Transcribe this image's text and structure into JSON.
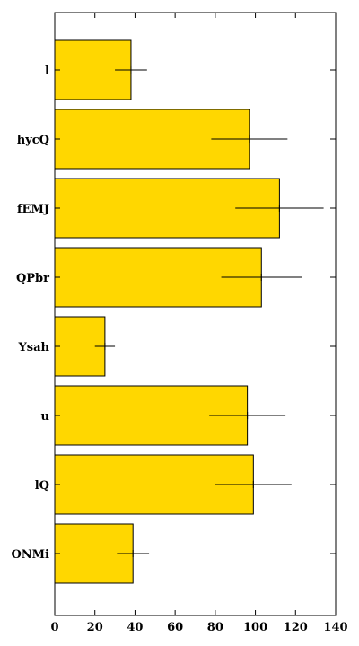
{
  "chart_data": {
    "type": "bar",
    "orientation": "horizontal",
    "categories": [
      "l",
      "hycQ",
      "fEMJ",
      "QPbr",
      "Ysah",
      "u",
      "lQ",
      "ONMi"
    ],
    "values": [
      38,
      97,
      112,
      103,
      25,
      96,
      99,
      39
    ],
    "errors": [
      8,
      19,
      22,
      20,
      5,
      19,
      19,
      8
    ],
    "xlim": [
      0,
      140
    ],
    "xticks": [
      0,
      20,
      40,
      60,
      80,
      100,
      120,
      140
    ],
    "bar_color": "#FFD700",
    "edge_color": "#000000",
    "errorbar_color": "#000000",
    "title": "",
    "xlabel": "",
    "ylabel": "",
    "grid": false
  }
}
